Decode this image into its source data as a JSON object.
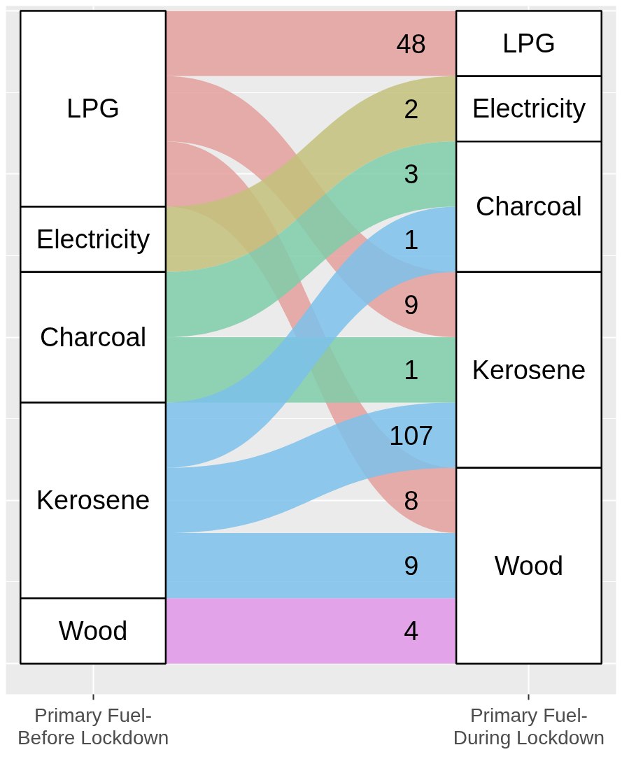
{
  "chart_data": {
    "type": "other",
    "categories": [
      "LPG",
      "Electricity",
      "Charcoal",
      "Kerosene",
      "Wood"
    ],
    "series": [
      {
        "name": "LPG",
        "color": "#e4a09c",
        "values": [
          48,
          null,
          null,
          9,
          8
        ]
      },
      {
        "name": "Electricity",
        "color": "#c3c17b",
        "values": [
          null,
          2,
          null,
          null,
          null
        ]
      },
      {
        "name": "Charcoal",
        "color": "#7fcda9",
        "values": [
          null,
          null,
          3,
          1,
          null
        ]
      },
      {
        "name": "Kerosene",
        "color": "#7cc1eb",
        "values": [
          null,
          null,
          1,
          107,
          9
        ]
      },
      {
        "name": "Wood",
        "color": "#e097e9",
        "values": [
          null,
          null,
          null,
          null,
          4
        ]
      }
    ],
    "annotations": [
      "Primary Fuel-\nBefore Lockdown",
      "Primary Fuel-\nDuring Lockdown"
    ],
    "data_labels": true
  }
}
